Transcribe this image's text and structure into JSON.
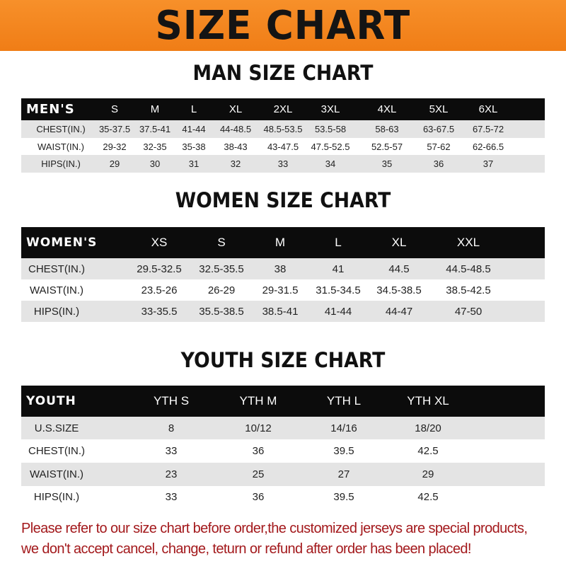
{
  "title": "SIZE CHART",
  "colors": {
    "banner": "#f28420",
    "header_row": "#0c0c0c",
    "stripe": "#e4e4e4",
    "note": "#a3191c"
  },
  "tables": [
    {
      "title": "MAN SIZE CHART",
      "header": "MEN'S",
      "sizes": [
        "S",
        "M",
        "L",
        "XL",
        "2XL",
        "3XL",
        "4XL",
        "5XL",
        "6XL"
      ],
      "rows": [
        {
          "label": "CHEST(IN.)",
          "values": [
            "35-37.5",
            "37.5-41",
            "41-44",
            "44-48.5",
            "48.5-53.5",
            "53.5-58",
            "58-63",
            "63-67.5",
            "67.5-72"
          ]
        },
        {
          "label": "WAIST(IN.)",
          "values": [
            "29-32",
            "32-35",
            "35-38",
            "38-43",
            "43-47.5",
            "47.5-52.5",
            "52.5-57",
            "57-62",
            "62-66.5"
          ]
        },
        {
          "label": "HIPS(IN.)",
          "values": [
            "29",
            "30",
            "31",
            "32",
            "33",
            "34",
            "35",
            "36",
            "37"
          ]
        }
      ]
    },
    {
      "title": "WOMEN SIZE CHART",
      "header": "WOMEN'S",
      "sizes": [
        "XS",
        "S",
        "M",
        "L",
        "XL",
        "XXL"
      ],
      "rows": [
        {
          "label": "CHEST(IN.)",
          "values": [
            "29.5-32.5",
            "32.5-35.5",
            "38",
            "41",
            "44.5",
            "44.5-48.5"
          ]
        },
        {
          "label": "WAIST(IN.)",
          "values": [
            "23.5-26",
            "26-29",
            "29-31.5",
            "31.5-34.5",
            "34.5-38.5",
            "38.5-42.5"
          ]
        },
        {
          "label": "HIPS(IN.)",
          "values": [
            "33-35.5",
            "35.5-38.5",
            "38.5-41",
            "41-44",
            "44-47",
            "47-50"
          ]
        }
      ]
    },
    {
      "title": "YOUTH SIZE CHART",
      "header": "YOUTH",
      "sizes": [
        "YTH S",
        "YTH M",
        "YTH L",
        "YTH XL"
      ],
      "rows": [
        {
          "label": "U.S.SIZE",
          "values": [
            "8",
            "10/12",
            "14/16",
            "18/20"
          ]
        },
        {
          "label": "CHEST(IN.)",
          "values": [
            "33",
            "36",
            "39.5",
            "42.5"
          ]
        },
        {
          "label": "WAIST(IN.)",
          "values": [
            "23",
            "25",
            "27",
            "29"
          ]
        },
        {
          "label": "HIPS(IN.)",
          "values": [
            "33",
            "36",
            "39.5",
            "42.5"
          ]
        }
      ]
    }
  ],
  "note": {
    "line1": "Please refer to our size chart before order,the customized jerseys are special products,",
    "line2": "we don't accept cancel, change, teturn or refund after order has been placed!"
  }
}
